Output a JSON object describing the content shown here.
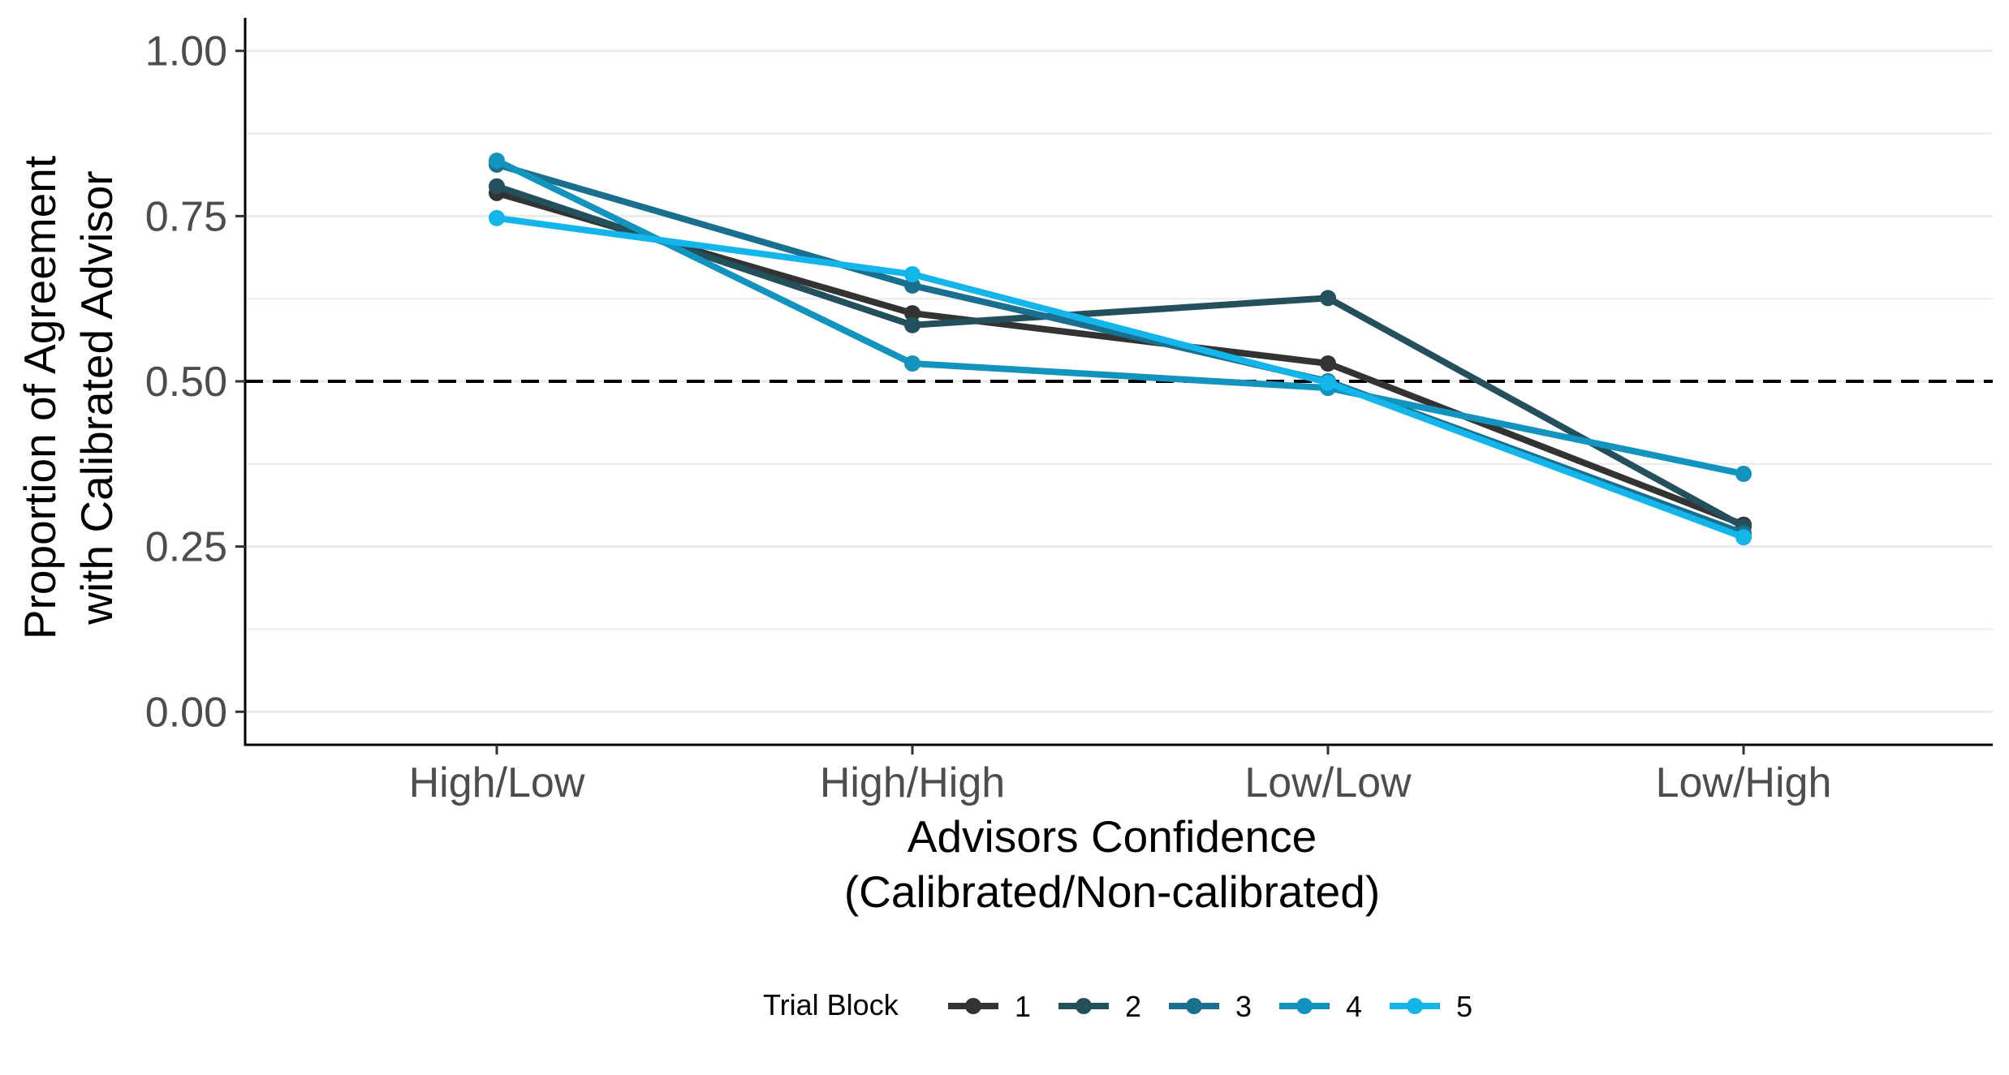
{
  "colors": {
    "series": [
      "#333333",
      "#24505e",
      "#1a6f8e",
      "#1294bf",
      "#13b5ea"
    ],
    "grid": "#ebebeb",
    "axis": "#000000",
    "reference_line": "#000000"
  },
  "chart_data": {
    "type": "line",
    "title": "",
    "categories": [
      "High/Low",
      "High/High",
      "Low/Low",
      "Low/High"
    ],
    "xlabel_line1": "Advisors Confidence",
    "xlabel_line2": "(Calibrated/Non-calibrated)",
    "ylabel_line1": "Proportion of Agreement",
    "ylabel_line2": "with Calibrated Advisor",
    "ylim": [
      -0.05,
      1.05
    ],
    "yticks": [
      "0.00",
      "0.25",
      "0.50",
      "0.75",
      "1.00"
    ],
    "ytick_values": [
      0,
      0.25,
      0.5,
      0.75,
      1.0
    ],
    "reference_line": {
      "y": 0.5,
      "style": "dashed"
    },
    "grid": "horizontal major and minor",
    "legend": {
      "title": "Trial Block",
      "position": "bottom"
    },
    "series": [
      {
        "name": "1",
        "values": [
          0.785,
          0.603,
          0.527,
          0.283
        ]
      },
      {
        "name": "2",
        "values": [
          0.795,
          0.585,
          0.626,
          0.28
        ]
      },
      {
        "name": "3",
        "values": [
          0.828,
          0.645,
          0.5,
          0.27
        ]
      },
      {
        "name": "4",
        "values": [
          0.834,
          0.527,
          0.49,
          0.36
        ]
      },
      {
        "name": "5",
        "values": [
          0.747,
          0.662,
          0.498,
          0.264
        ]
      }
    ]
  }
}
